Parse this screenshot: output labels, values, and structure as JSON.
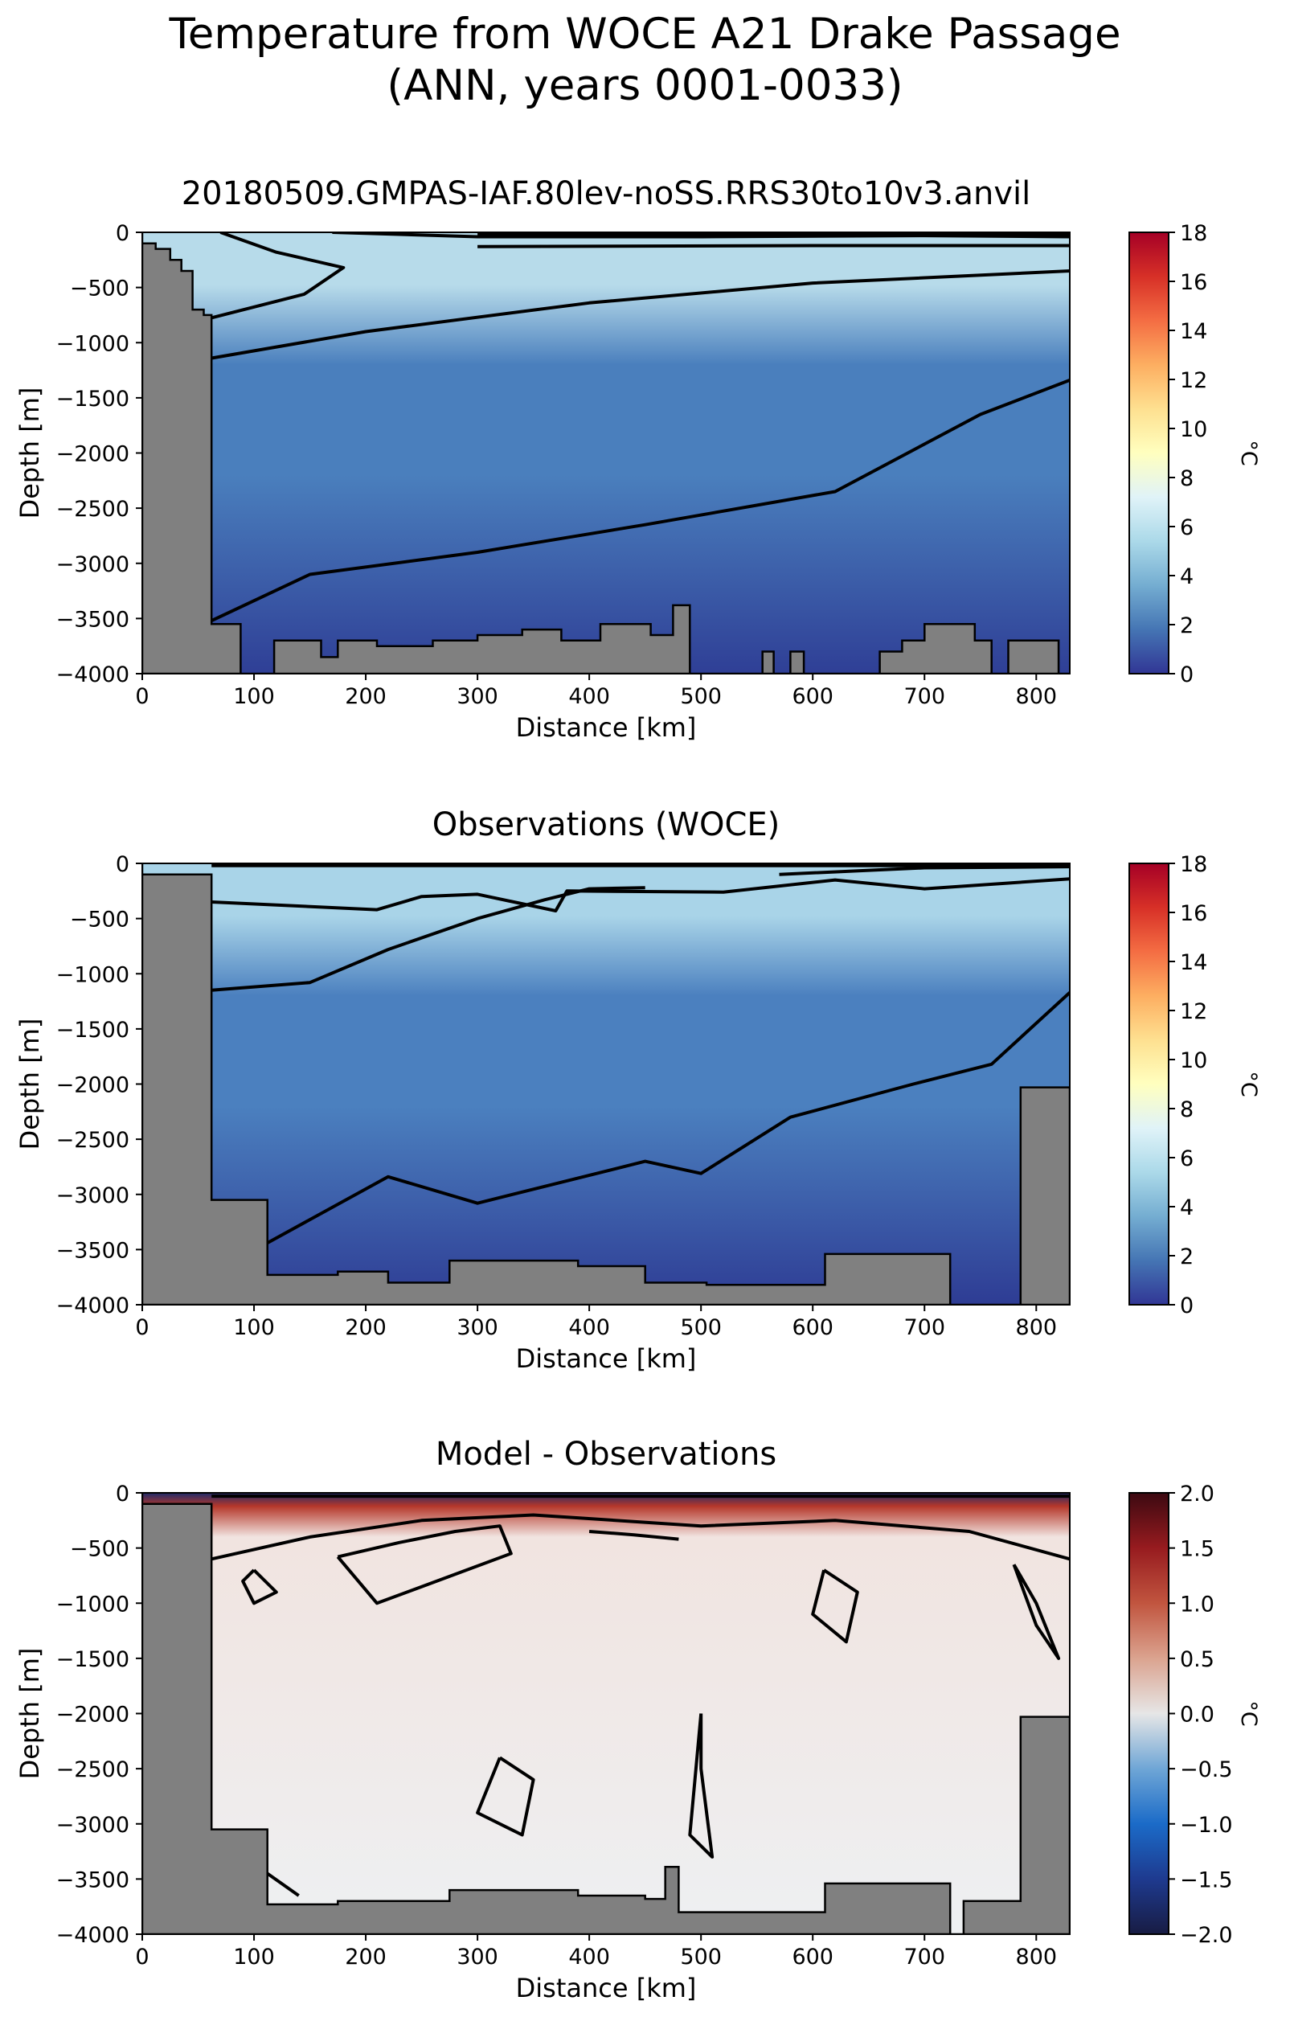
{
  "figure": {
    "title_line1": "Temperature from WOCE A21 Drake Passage",
    "title_line2": "(ANN, years 0001-0033)"
  },
  "chart_data": [
    {
      "type": "heatmap",
      "title": "20180509.GMPAS-IAF.80lev-noSS.RRS30to10v3.anvil",
      "xlabel": "Distance [km]",
      "ylabel": "Depth [m]",
      "xlim": [
        0,
        830
      ],
      "ylim": [
        -4000,
        0
      ],
      "xticks": [
        "0",
        "100",
        "200",
        "300",
        "400",
        "500",
        "600",
        "700",
        "800"
      ],
      "yticks": [
        "0",
        "−500",
        "−1000",
        "−1500",
        "−2000",
        "−2500",
        "−3000",
        "−3500",
        "−4000"
      ],
      "colorbar": {
        "label": "°C",
        "range": [
          0,
          18
        ],
        "ticks": [
          "0",
          "2",
          "4",
          "6",
          "8",
          "10",
          "12",
          "14",
          "16",
          "18"
        ],
        "colormap": "RdYlBu_r",
        "colors": [
          "#313695",
          "#4575b4",
          "#74add1",
          "#abd9e9",
          "#e0f3f8",
          "#ffffbf",
          "#fee090",
          "#fdae61",
          "#f46d43",
          "#d73027",
          "#a50026"
        ]
      },
      "field_colors": {
        "surface": "#b7dbea",
        "mid": "#4a7fbd",
        "deep": "#2f3f96"
      },
      "bathymetry_color": "#808080",
      "contour_color": "#000000"
    },
    {
      "type": "heatmap",
      "title": "Observations (WOCE)",
      "xlabel": "Distance [km]",
      "ylabel": "Depth [m]",
      "xlim": [
        0,
        830
      ],
      "ylim": [
        -4000,
        0
      ],
      "xticks": [
        "0",
        "100",
        "200",
        "300",
        "400",
        "500",
        "600",
        "700",
        "800"
      ],
      "yticks": [
        "0",
        "−500",
        "−1000",
        "−1500",
        "−2000",
        "−2500",
        "−3000",
        "−3500",
        "−4000"
      ],
      "colorbar": {
        "label": "°C",
        "range": [
          0,
          18
        ],
        "ticks": [
          "0",
          "2",
          "4",
          "6",
          "8",
          "10",
          "12",
          "14",
          "16",
          "18"
        ],
        "colormap": "RdYlBu_r",
        "colors": [
          "#313695",
          "#4575b4",
          "#74add1",
          "#abd9e9",
          "#e0f3f8",
          "#ffffbf",
          "#fee090",
          "#fdae61",
          "#f46d43",
          "#d73027",
          "#a50026"
        ]
      },
      "field_colors": {
        "surface": "#a9d4e8",
        "mid": "#4b80bf",
        "deep": "#2e3c94"
      },
      "bathymetry_color": "#808080",
      "contour_color": "#000000"
    },
    {
      "type": "heatmap",
      "title": "Model - Observations",
      "xlabel": "Distance [km]",
      "ylabel": "Depth [m]",
      "xlim": [
        0,
        830
      ],
      "ylim": [
        -4000,
        0
      ],
      "xticks": [
        "0",
        "100",
        "200",
        "300",
        "400",
        "500",
        "600",
        "700",
        "800"
      ],
      "yticks": [
        "0",
        "−500",
        "−1000",
        "−1500",
        "−2000",
        "−2500",
        "−3000",
        "−3500",
        "−4000"
      ],
      "colorbar": {
        "label": "°C",
        "range": [
          -2,
          2
        ],
        "ticks": [
          "−2.0",
          "−1.5",
          "−1.0",
          "−0.5",
          "0.0",
          "0.5",
          "1.0",
          "1.5",
          "2.0"
        ],
        "colormap": "balance",
        "colors": [
          "#181c43",
          "#1e3a8f",
          "#1b6bc8",
          "#6fa6d6",
          "#e6e6e6",
          "#dba38f",
          "#c1553f",
          "#971b1f",
          "#3c0911"
        ]
      },
      "field_colors": {
        "surface": "#1e2a6a",
        "mid": "#f1e4e0",
        "deep": "#eef0f2",
        "warm": "#b5372a"
      },
      "bathymetry_color": "#808080",
      "contour_color": "#000000"
    }
  ]
}
